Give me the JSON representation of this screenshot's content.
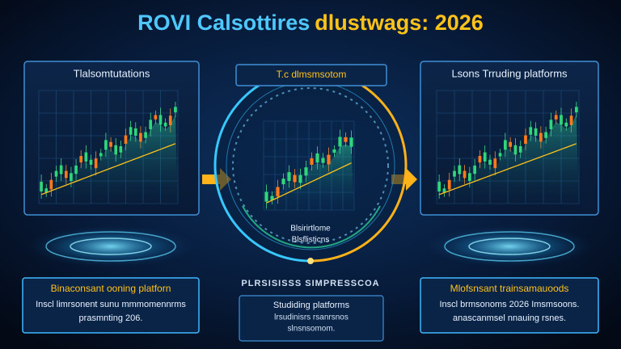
{
  "header": {
    "title_part1": "ROVI Calsottires",
    "title_part2": "dlustwags: 2026"
  },
  "panels": [
    {
      "label": "Tlalsomtutations"
    },
    {
      "label": "T.c dlmsmsotom",
      "circle_lines": [
        "Blsirirtlome",
        "Blsflisticns"
      ],
      "banner": "PLRSISISSS SIMPRESSCOA"
    },
    {
      "label": "Lsons Trruding platforms"
    }
  ],
  "cards": [
    {
      "title": "Binaconsant ooning platforn",
      "lines": [
        "Inscl limrsonent sunu mmmomennrms",
        "prasmnting 206."
      ]
    },
    {
      "title": "Studiding platforms",
      "lines": [
        "lrsudinisrs rsanrsnos",
        "slnsnsomom."
      ]
    },
    {
      "title": "Mlofsnsant trainsamauoods",
      "lines": [
        "Inscl brmsonoms 2026 Imsmsoons.",
        "anascanmsel nnauing rsnes."
      ]
    }
  ]
}
